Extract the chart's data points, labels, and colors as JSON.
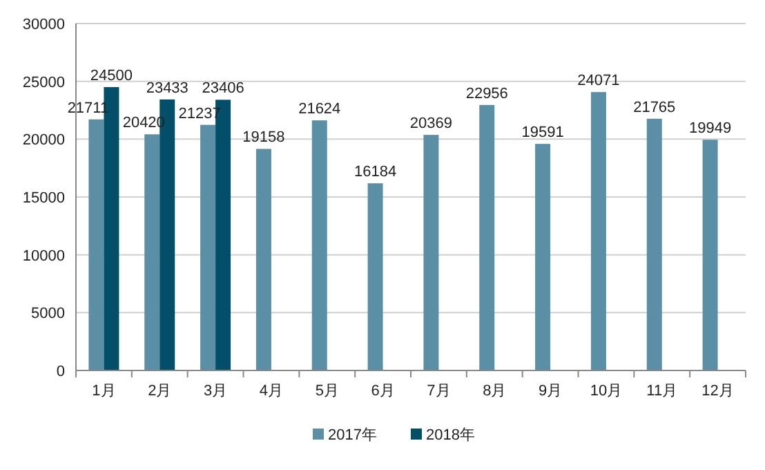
{
  "chart_data": {
    "type": "bar",
    "categories": [
      "1月",
      "2月",
      "3月",
      "4月",
      "5月",
      "6月",
      "7月",
      "8月",
      "9月",
      "10月",
      "11月",
      "12月"
    ],
    "series": [
      {
        "name": "2017年",
        "color": "#5b8fa6",
        "values": [
          21711,
          20420,
          21237,
          19158,
          21624,
          16184,
          20369,
          22956,
          19591,
          24071,
          21765,
          19949
        ]
      },
      {
        "name": "2018年",
        "color": "#034e68",
        "values": [
          24500,
          23433,
          23406,
          null,
          null,
          null,
          null,
          null,
          null,
          null,
          null,
          null
        ]
      }
    ],
    "ylim": [
      0,
      30000
    ],
    "yticks": [
      0,
      5000,
      10000,
      15000,
      20000,
      25000,
      30000
    ],
    "grid": "y",
    "legend": "bottom",
    "data_labels": true
  }
}
